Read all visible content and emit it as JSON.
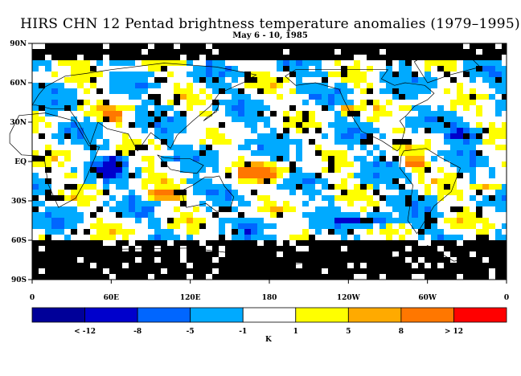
{
  "title": "HIRS CHN 12 Pentad brightness temperature anomalies (1979–1995)",
  "subtitle": "May 6 - 10, 1985",
  "lat_labels": [
    "90N",
    "60N",
    "30N",
    "EQ",
    "30S",
    "60S",
    "90S"
  ],
  "lon_labels": [
    "0",
    "60E",
    "120E",
    "180",
    "120W",
    "60W",
    "0"
  ],
  "colorbar": {
    "colors": [
      "#000099",
      "#0000cc",
      "#0066ff",
      "#00aaff",
      "#ffffff",
      "#ffff00",
      "#ffaa00",
      "#ff7700",
      "#ff0000"
    ],
    "labels": [
      "< -12",
      "-8",
      "-5",
      "-1",
      "1",
      "5",
      "8",
      "> 12"
    ],
    "units": "K"
  },
  "map_colors": {
    "missing": "#000000",
    "light_blue": "#00aaff",
    "mid_blue": "#0066ff",
    "dark_blue": "#0000cc",
    "yellow": "#ffff00",
    "orange": "#ffaa00",
    "deep_orange": "#ff7700",
    "neutral": "#ffffff"
  }
}
